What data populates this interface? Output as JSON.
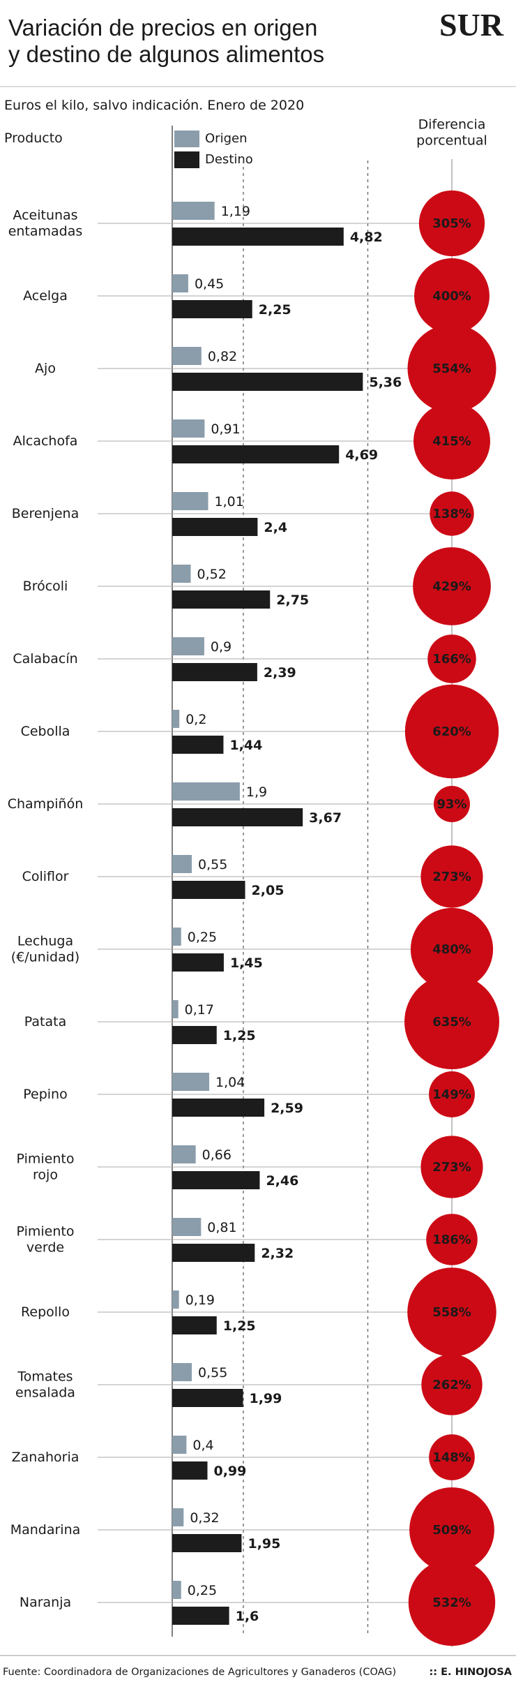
{
  "chart_data": {
    "type": "bar",
    "title": "Variación de precios en origen\ny destino de algunos alimentos",
    "logo": "SUR",
    "subtitle": "Euros el kilo, salvo indicación. Enero de 2020",
    "category_header": "Producto",
    "categories": [
      "Aceitunas\nentamadas",
      "Acelga",
      "Ajo",
      "Alcachofa",
      "Berenjena",
      "Brócoli",
      "Calabacín",
      "Cebolla",
      "Champiñón",
      "Coliflor",
      "Lechuga\n(€/unidad)",
      "Patata",
      "Pepino",
      "Pimiento\nrojo",
      "Pimiento\nverde",
      "Repollo",
      "Tomates\nensalada",
      "Zanahoria",
      "Mandarina",
      "Naranja"
    ],
    "series": [
      {
        "name": "Origen",
        "color": "#8b9dab",
        "values": [
          1.19,
          0.45,
          0.82,
          0.91,
          1.01,
          0.52,
          0.9,
          0.2,
          1.9,
          0.55,
          0.25,
          0.17,
          1.04,
          0.66,
          0.81,
          0.19,
          0.55,
          0.4,
          0.32,
          0.25
        ],
        "value_labels": [
          "1,19",
          "0,45",
          "0,82",
          "0,91",
          "1,01",
          "0,52",
          "0,9",
          "0,2",
          "1,9",
          "0,55",
          "0,25",
          "0,17",
          "1,04",
          "0,66",
          "0,81",
          "0,19",
          "0,55",
          "0,4",
          "0,32",
          "0,25"
        ]
      },
      {
        "name": "Destino",
        "color": "#1c1c1c",
        "values": [
          4.82,
          2.25,
          5.36,
          4.69,
          2.4,
          2.75,
          2.39,
          1.44,
          3.67,
          2.05,
          1.45,
          1.25,
          2.59,
          2.46,
          2.32,
          1.25,
          1.99,
          0.99,
          1.95,
          1.6
        ],
        "value_labels": [
          "4,82",
          "2,25",
          "5,36",
          "4,69",
          "2,4",
          "2,75",
          "2,39",
          "1,44",
          "3,67",
          "2,05",
          "1,45",
          "1,25",
          "2,59",
          "2,46",
          "2,32",
          "1,25",
          "1,99",
          "0,99",
          "1,95",
          "1,6"
        ]
      }
    ],
    "difference": {
      "name": "Diferencia\nporcentual",
      "color": "#cc0a15",
      "values": [
        305,
        400,
        554,
        415,
        138,
        429,
        166,
        620,
        93,
        273,
        480,
        635,
        149,
        273,
        186,
        558,
        262,
        148,
        509,
        532
      ],
      "value_labels": [
        "305%",
        "400%",
        "554%",
        "415%",
        "138%",
        "429%",
        "166%",
        "620%",
        "93%",
        "273%",
        "480%",
        "635%",
        "149%",
        "273%",
        "186%",
        "558%",
        "262%",
        "148%",
        "509%",
        "532%"
      ]
    },
    "xlim": [
      0,
      6
    ],
    "xgrid": [
      2,
      5.5
    ],
    "source": "Fuente: Coordinadora de Organizaciones de Agricultores y Ganaderos (COAG)",
    "credit": ":: E. HINOJOSA"
  }
}
